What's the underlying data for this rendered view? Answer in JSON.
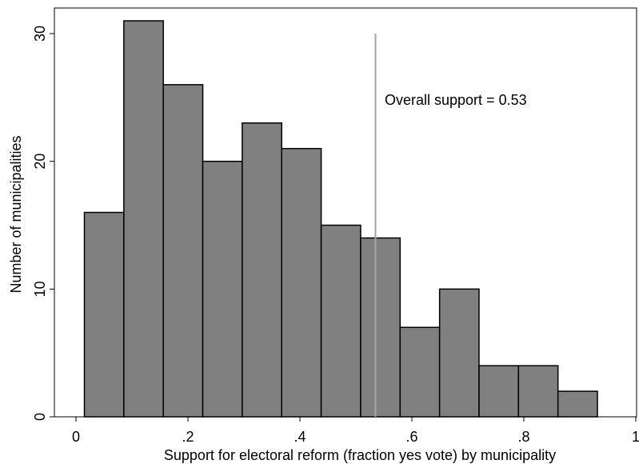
{
  "chart_data": {
    "type": "bar",
    "xlabel": "Support for electoral reform (fraction yes vote) by municipality",
    "ylabel": "Number of municipalities",
    "xlim": [
      0,
      1
    ],
    "ylim": [
      0,
      33
    ],
    "x_ticks": [
      0,
      0.2,
      0.4,
      0.6,
      0.8,
      1
    ],
    "x_tick_labels": [
      "0",
      ".2",
      ".4",
      ".6",
      ".8",
      "1"
    ],
    "y_ticks": [
      0,
      10,
      20,
      30
    ],
    "y_tick_labels": [
      "0",
      "10",
      "20",
      "30"
    ],
    "bins": [
      {
        "x0": 0.015,
        "x1": 0.0855,
        "count": 16
      },
      {
        "x0": 0.0855,
        "x1": 0.156,
        "count": 31
      },
      {
        "x0": 0.156,
        "x1": 0.2265,
        "count": 26
      },
      {
        "x0": 0.2265,
        "x1": 0.297,
        "count": 20
      },
      {
        "x0": 0.297,
        "x1": 0.3675,
        "count": 23
      },
      {
        "x0": 0.3675,
        "x1": 0.438,
        "count": 21
      },
      {
        "x0": 0.438,
        "x1": 0.5085,
        "count": 15
      },
      {
        "x0": 0.5085,
        "x1": 0.579,
        "count": 14
      },
      {
        "x0": 0.579,
        "x1": 0.6495,
        "count": 7
      },
      {
        "x0": 0.6495,
        "x1": 0.72,
        "count": 10
      },
      {
        "x0": 0.72,
        "x1": 0.7905,
        "count": 4
      },
      {
        "x0": 0.7905,
        "x1": 0.861,
        "count": 4
      },
      {
        "x0": 0.861,
        "x1": 0.9315,
        "count": 2
      }
    ],
    "reference_line": {
      "x": 0.535,
      "y_top": 30,
      "label": "Overall support = 0.53",
      "color": "#a6a6a6"
    },
    "bar_fill": "#808080",
    "bar_stroke": "#000000",
    "grid": false
  }
}
